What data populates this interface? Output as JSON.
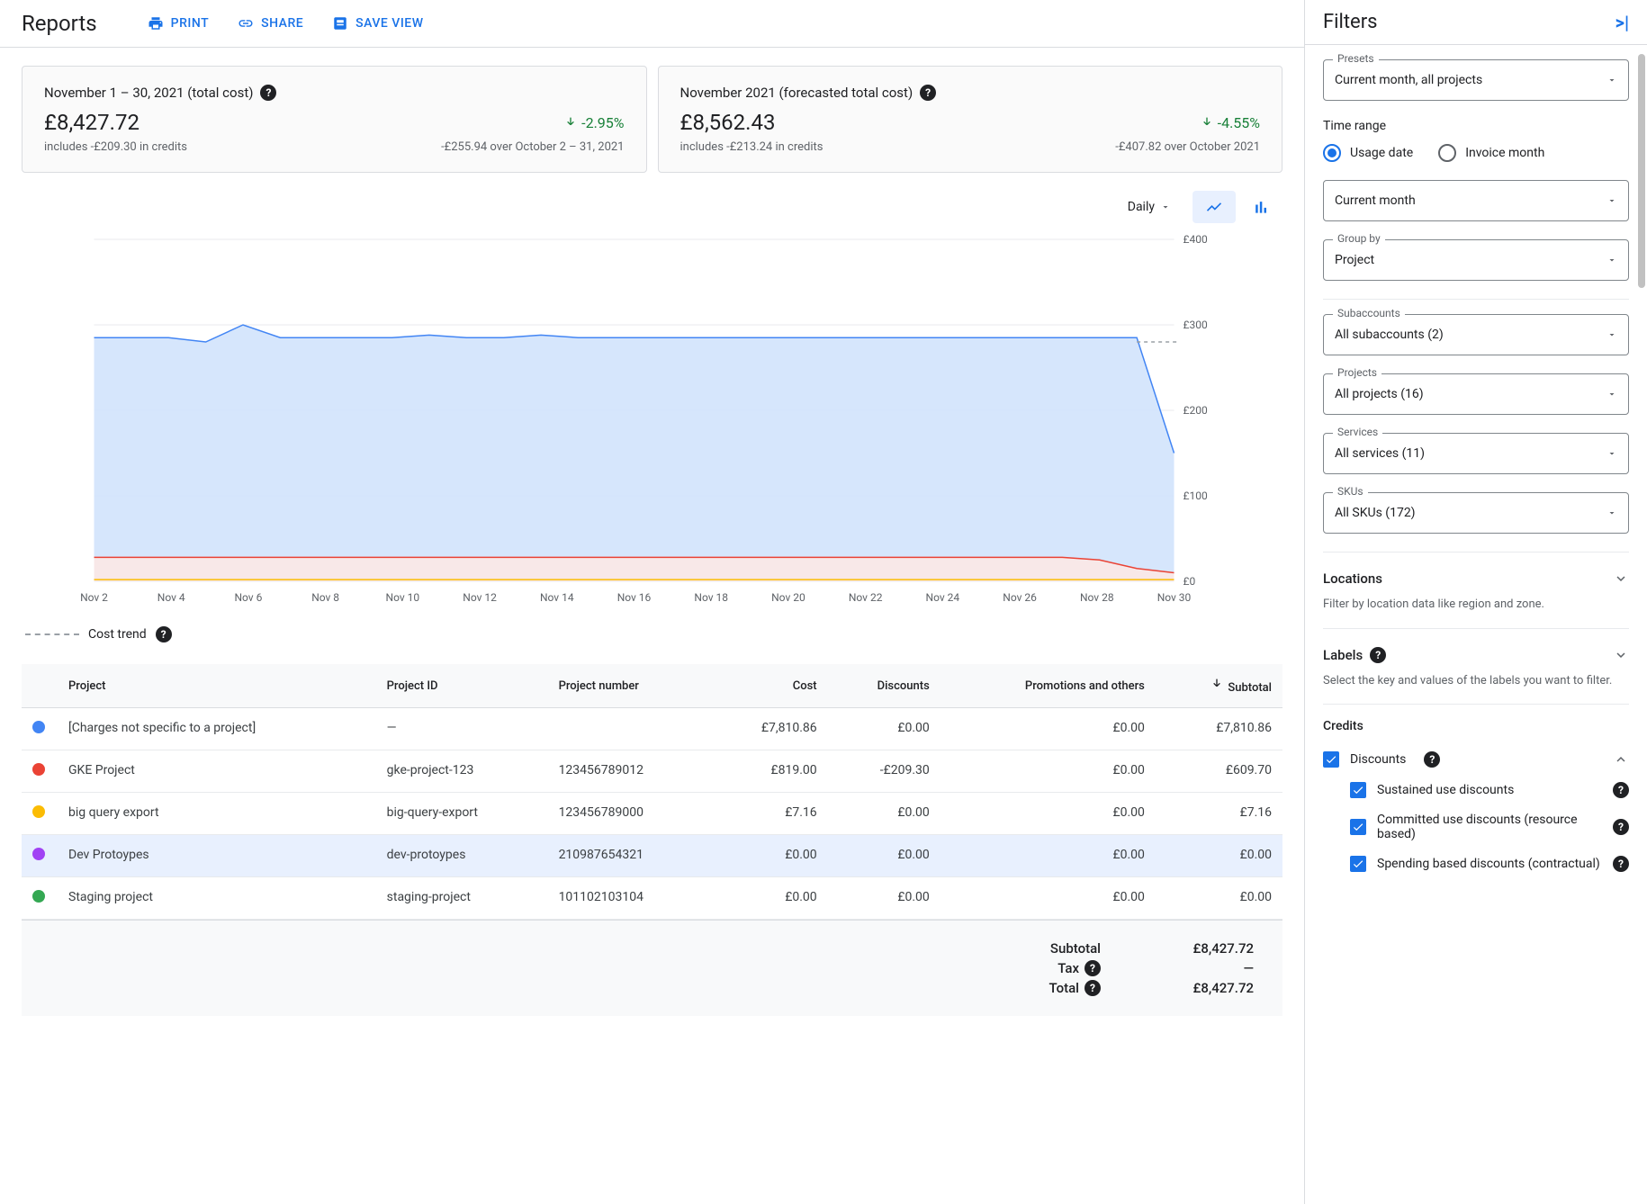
{
  "header": {
    "title": "Reports",
    "actions": {
      "print": "PRINT",
      "share": "SHARE",
      "save": "SAVE VIEW"
    }
  },
  "cards": [
    {
      "title": "November 1 – 30, 2021 (total cost)",
      "amount": "£8,427.72",
      "delta": "-2.95%",
      "delta_color": "#188038",
      "sub_left": "includes -£209.30 in credits",
      "sub_right": "-£255.94 over October 2 – 31, 2021"
    },
    {
      "title": "November 2021 (forecasted total cost)",
      "amount": "£8,562.43",
      "delta": "-4.55%",
      "delta_color": "#188038",
      "sub_left": "includes -£213.24 in credits",
      "sub_right": "-£407.82 over October 2021"
    }
  ],
  "chart": {
    "granularity": "Daily",
    "y_ticks": [
      "£400",
      "£300",
      "£200",
      "£100",
      "£0"
    ],
    "x_ticks": [
      "Nov 2",
      "Nov 4",
      "Nov 6",
      "Nov 8",
      "Nov 10",
      "Nov 12",
      "Nov 14",
      "Nov 16",
      "Nov 18",
      "Nov 20",
      "Nov 22",
      "Nov 24",
      "Nov 26",
      "Nov 28",
      "Nov 30"
    ],
    "ylim": [
      0,
      400
    ],
    "legend_trend": "Cost trend",
    "series": [
      {
        "color": "#4285f4",
        "fill": "#d2e3fc",
        "values": [
          285,
          285,
          285,
          280,
          300,
          285,
          285,
          285,
          285,
          288,
          285,
          285,
          288,
          285,
          285,
          285,
          285,
          285,
          285,
          285,
          285,
          285,
          285,
          285,
          285,
          285,
          285,
          285,
          285,
          150
        ]
      },
      {
        "color": "#ea4335",
        "fill": "#fce8e6",
        "values": [
          28,
          28,
          28,
          28,
          28,
          28,
          28,
          28,
          28,
          28,
          28,
          28,
          28,
          28,
          28,
          28,
          28,
          28,
          28,
          28,
          28,
          28,
          28,
          28,
          28,
          28,
          28,
          25,
          15,
          10
        ]
      },
      {
        "color": "#fbbc04",
        "fill": "none",
        "values": [
          2,
          2,
          2,
          2,
          2,
          2,
          2,
          2,
          2,
          2,
          2,
          2,
          2,
          2,
          2,
          2,
          2,
          2,
          2,
          2,
          2,
          2,
          2,
          2,
          2,
          2,
          2,
          2,
          2,
          2
        ]
      }
    ],
    "trend_level": 280,
    "grid_color": "#e8eaed",
    "background_color": "#ffffff"
  },
  "table": {
    "columns": [
      "",
      "Project",
      "Project ID",
      "Project number",
      "Cost",
      "Discounts",
      "Promotions and others",
      "Subtotal"
    ],
    "sort_col": 7,
    "rows": [
      {
        "color": "#4285f4",
        "project": "[Charges not specific to a project]",
        "project_id": "—",
        "project_num": "",
        "cost": "£7,810.86",
        "discounts": "£0.00",
        "promo": "£0.00",
        "subtotal": "£7,810.86"
      },
      {
        "color": "#ea4335",
        "project": "GKE Project",
        "project_id": "gke-project-123",
        "project_num": "123456789012",
        "cost": "£819.00",
        "discounts": "-£209.30",
        "promo": "£0.00",
        "subtotal": "£609.70"
      },
      {
        "color": "#fbbc04",
        "project": "big query export",
        "project_id": "big-query-export",
        "project_num": "123456789000",
        "cost": "£7.16",
        "discounts": "£0.00",
        "promo": "£0.00",
        "subtotal": "£7.16"
      },
      {
        "color": "#a142f4",
        "project": "Dev Protoypes",
        "project_id": "dev-protoypes",
        "project_num": "210987654321",
        "cost": "£0.00",
        "discounts": "£0.00",
        "promo": "£0.00",
        "subtotal": "£0.00",
        "hl": true
      },
      {
        "color": "#34a853",
        "project": "Staging project",
        "project_id": "staging-project",
        "project_num": "101102103104",
        "cost": "£0.00",
        "discounts": "£0.00",
        "promo": "£0.00",
        "subtotal": "£0.00"
      }
    ]
  },
  "totals": {
    "subtotal_label": "Subtotal",
    "subtotal": "£8,427.72",
    "tax_label": "Tax",
    "tax": "—",
    "total_label": "Total",
    "total": "£8,427.72"
  },
  "filters": {
    "title": "Filters",
    "presets": {
      "label": "Presets",
      "value": "Current month, all projects"
    },
    "time_range": {
      "label": "Time range",
      "opt1": "Usage date",
      "opt2": "Invoice month",
      "checked": 1,
      "period": "Current month"
    },
    "group_by": {
      "label": "Group by",
      "value": "Project"
    },
    "subaccounts": {
      "label": "Subaccounts",
      "value": "All subaccounts (2)"
    },
    "projects": {
      "label": "Projects",
      "value": "All projects (16)"
    },
    "services": {
      "label": "Services",
      "value": "All services (11)"
    },
    "skus": {
      "label": "SKUs",
      "value": "All SKUs (172)"
    },
    "locations": {
      "label": "Locations",
      "sub": "Filter by location data like region and zone."
    },
    "labels": {
      "label": "Labels",
      "sub": "Select the key and values of the labels you want to filter."
    },
    "credits": {
      "label": "Credits",
      "discounts": "Discounts",
      "items": [
        "Sustained use discounts",
        "Committed use discounts (resource based)",
        "Spending based discounts (contractual)"
      ]
    }
  }
}
